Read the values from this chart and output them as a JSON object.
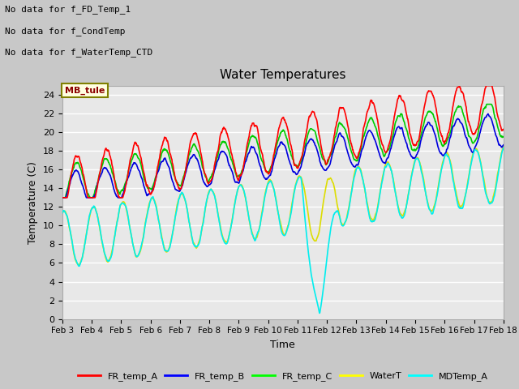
{
  "title": "Water Temperatures",
  "xlabel": "Time",
  "ylabel": "Temperature (C)",
  "xlim": [
    0,
    360
  ],
  "ylim": [
    0,
    25
  ],
  "yticks": [
    0,
    2,
    4,
    6,
    8,
    10,
    12,
    14,
    16,
    18,
    20,
    22,
    24
  ],
  "xtick_labels": [
    "Feb 3",
    "Feb 4",
    "Feb 5",
    "Feb 6",
    "Feb 7",
    "Feb 8",
    "Feb 9",
    "Feb 10",
    "Feb 11",
    "Feb 12",
    "Feb 13",
    "Feb 14",
    "Feb 15",
    "Feb 16",
    "Feb 17",
    "Feb 18"
  ],
  "annotations": [
    "No data for f_FD_Temp_1",
    "No data for f_CondTemp",
    "No data for f_WaterTemp_CTD"
  ],
  "mb_tule_label": "MB_tule",
  "series": {
    "FR_temp_A": {
      "color": "#ff0000",
      "lw": 1.2
    },
    "FR_temp_B": {
      "color": "#0000dd",
      "lw": 1.2
    },
    "FR_temp_C": {
      "color": "#00cc00",
      "lw": 1.2
    },
    "WaterT": {
      "color": "#dddd00",
      "lw": 1.2
    },
    "MDTemp_A": {
      "color": "#00eeee",
      "lw": 1.2
    }
  }
}
